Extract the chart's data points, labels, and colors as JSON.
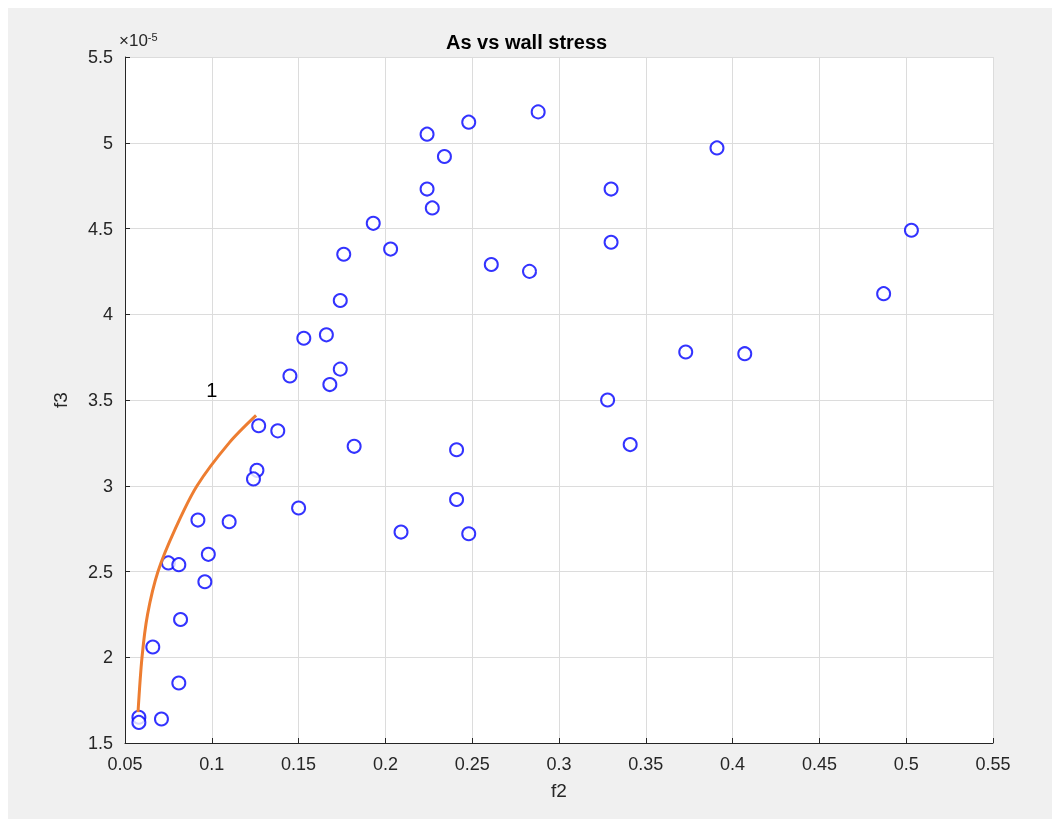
{
  "chart_data": {
    "type": "scatter",
    "title": "As vs wall stress",
    "xlabel": "f2",
    "ylabel": "f3",
    "xlim": [
      0.05,
      0.55
    ],
    "xticks": [
      0.05,
      0.1,
      0.15,
      0.2,
      0.25,
      0.3,
      0.35,
      0.4,
      0.45,
      0.5,
      0.55
    ],
    "ylim": [
      1.5,
      5.5
    ],
    "yticks": [
      1.5,
      2,
      2.5,
      3,
      3.5,
      4,
      4.5,
      5,
      5.5
    ],
    "grid": true,
    "marker": "circle",
    "series": [
      {
        "color": "#0000ff",
        "x": [
          0.288,
          0.224,
          0.248,
          0.234,
          0.224,
          0.227,
          0.193,
          0.203,
          0.176,
          0.261,
          0.283,
          0.174,
          0.153,
          0.166,
          0.145,
          0.174,
          0.168,
          0.127,
          0.138,
          0.182,
          0.126,
          0.124,
          0.15,
          0.241,
          0.241,
          0.209,
          0.248,
          0.092,
          0.11,
          0.075,
          0.081,
          0.098,
          0.096,
          0.082,
          0.066,
          0.081,
          0.058,
          0.058,
          0.071,
          0.33,
          0.33,
          0.391,
          0.503,
          0.487,
          0.373,
          0.407,
          0.328,
          0.341
        ],
        "values": [
          5.18,
          5.05,
          5.12,
          4.92,
          4.73,
          4.62,
          4.53,
          4.38,
          4.35,
          4.29,
          4.25,
          4.08,
          3.86,
          3.88,
          3.64,
          3.68,
          3.59,
          3.35,
          3.32,
          3.23,
          3.09,
          3.04,
          2.87,
          3.21,
          2.92,
          2.73,
          2.72,
          2.8,
          2.79,
          2.55,
          2.54,
          2.6,
          2.44,
          2.22,
          2.06,
          1.85,
          1.65,
          1.62,
          1.64,
          4.73,
          4.42,
          4.97,
          4.49,
          4.12,
          3.78,
          3.77,
          3.5,
          3.24
        ]
      },
      {
        "type": "line",
        "color": "#ed7d31",
        "marker": "none",
        "x": [
          0.0575,
          0.0598,
          0.063,
          0.069,
          0.079,
          0.0915,
          0.11,
          0.1255
        ],
        "values": [
          1.68,
          2.0,
          2.25,
          2.5,
          2.75,
          3.0,
          3.25,
          3.41
        ]
      }
    ],
    "annotations": [
      "×10$^{-5}$",
      "1"
    ]
  }
}
